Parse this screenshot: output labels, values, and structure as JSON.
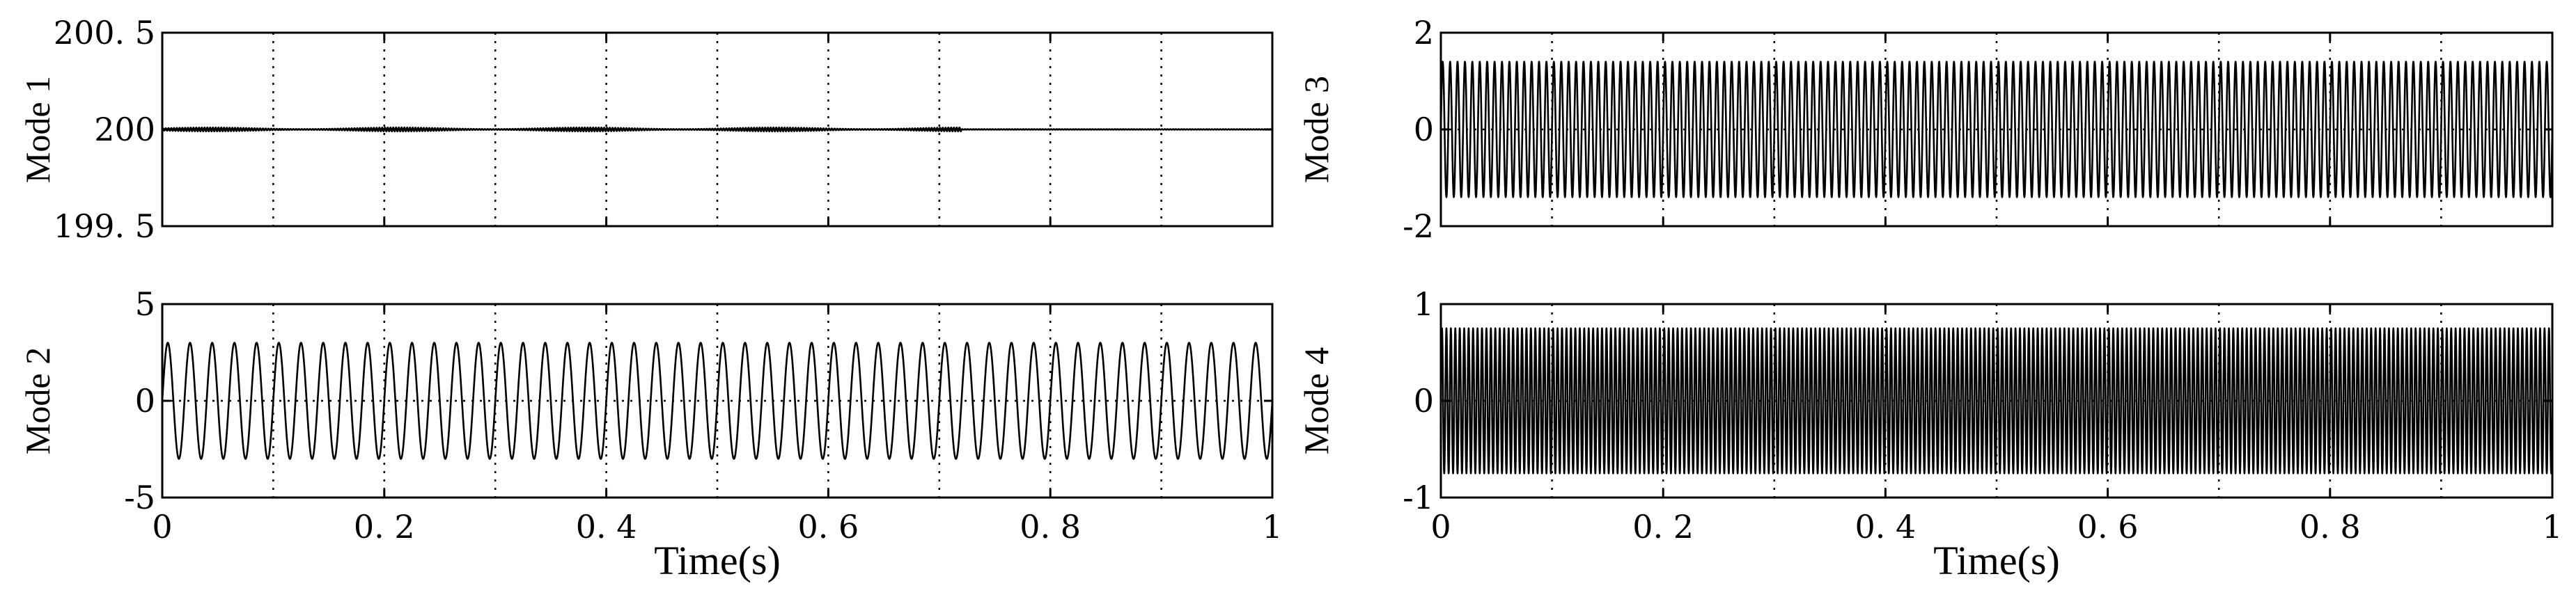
{
  "chart_data": [
    {
      "type": "line",
      "id": "mode1",
      "ylabel": "Mode 1",
      "xlabel": "",
      "xlim": [
        0,
        1
      ],
      "ylim": [
        199.5,
        200.5
      ],
      "xticks": [
        0,
        0.2,
        0.4,
        0.6,
        0.8,
        1
      ],
      "xtick_labels": [],
      "yticks": [
        199.5,
        200,
        200.5
      ],
      "ytick_labels": [
        "199. 5",
        "200",
        "200. 5"
      ],
      "grid": true,
      "series": [
        {
          "x": [
            0,
            1
          ],
          "y": [
            200,
            200
          ],
          "ripple_amplitude": 0.01,
          "ripple_frequency_hz": 400,
          "ripple_ends_at": 0.72
        }
      ]
    },
    {
      "type": "line",
      "id": "mode2",
      "ylabel": "Mode 2",
      "xlabel": "Time(s)",
      "xlim": [
        0,
        1
      ],
      "ylim": [
        -5,
        5
      ],
      "xticks": [
        0,
        0.2,
        0.4,
        0.6,
        0.8,
        1
      ],
      "xtick_labels": [
        "0",
        "0. 2",
        "0. 4",
        "0. 6",
        "0. 8",
        "1"
      ],
      "yticks": [
        -5,
        0,
        5
      ],
      "ytick_labels": [
        "-5",
        "0",
        "5"
      ],
      "grid": true,
      "series": [
        {
          "amplitude": 3,
          "frequency_hz": 50
        }
      ]
    },
    {
      "type": "line",
      "id": "mode3",
      "ylabel": "Mode 3",
      "xlabel": "",
      "xlim": [
        0,
        1
      ],
      "ylim": [
        -2,
        2
      ],
      "xticks": [
        0,
        0.2,
        0.4,
        0.6,
        0.8,
        1
      ],
      "xtick_labels": [],
      "yticks": [
        -2,
        0,
        2
      ],
      "ytick_labels": [
        "-2",
        "0",
        "2"
      ],
      "grid": true,
      "series": [
        {
          "amplitude": 1.4,
          "frequency_hz": 150
        }
      ]
    },
    {
      "type": "line",
      "id": "mode4",
      "ylabel": "Mode 4",
      "xlabel": "Time(s)",
      "xlim": [
        0,
        1
      ],
      "ylim": [
        -1,
        1
      ],
      "xticks": [
        0,
        0.2,
        0.4,
        0.6,
        0.8,
        1
      ],
      "xtick_labels": [
        "0",
        "0. 2",
        "0. 4",
        "0. 6",
        "0. 8",
        "1"
      ],
      "yticks": [
        -1,
        0,
        1
      ],
      "ytick_labels": [
        "-1",
        "0",
        "1"
      ],
      "grid": true,
      "series": [
        {
          "amplitude": 0.75,
          "frequency_hz": 250
        }
      ]
    }
  ]
}
